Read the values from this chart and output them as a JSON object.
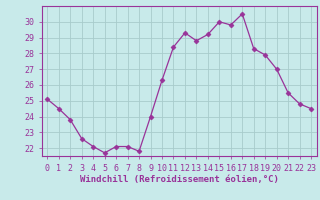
{
  "x": [
    0,
    1,
    2,
    3,
    4,
    5,
    6,
    7,
    8,
    9,
    10,
    11,
    12,
    13,
    14,
    15,
    16,
    17,
    18,
    19,
    20,
    21,
    22,
    23
  ],
  "y": [
    25.1,
    24.5,
    23.8,
    22.6,
    22.1,
    21.7,
    22.1,
    22.1,
    21.8,
    24.0,
    26.3,
    28.4,
    29.3,
    28.8,
    29.2,
    30.0,
    29.8,
    30.5,
    28.3,
    27.9,
    27.0,
    25.5,
    24.8,
    24.5
  ],
  "line_color": "#993399",
  "marker": "D",
  "marker_size": 2.5,
  "bg_color": "#c8eaea",
  "grid_color": "#a8cccc",
  "xlabel": "Windchill (Refroidissement éolien,°C)",
  "ylim": [
    21.5,
    31.0
  ],
  "xlim": [
    -0.5,
    23.5
  ],
  "yticks": [
    22,
    23,
    24,
    25,
    26,
    27,
    28,
    29,
    30
  ],
  "xticks": [
    0,
    1,
    2,
    3,
    4,
    5,
    6,
    7,
    8,
    9,
    10,
    11,
    12,
    13,
    14,
    15,
    16,
    17,
    18,
    19,
    20,
    21,
    22,
    23
  ],
  "font_color": "#993399",
  "tick_fontsize": 6.0,
  "xlabel_fontsize": 6.5
}
